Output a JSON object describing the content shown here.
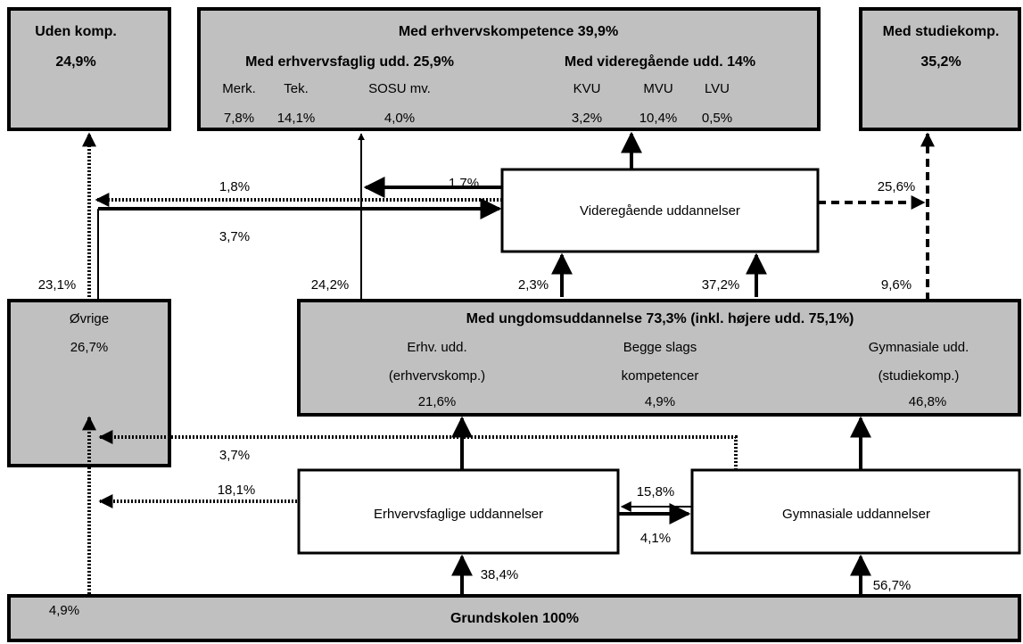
{
  "boxes": {
    "uden": {
      "title": "Uden komp.",
      "value": "24,9%"
    },
    "erhvervskompetence": {
      "title": "Med erhvervskompetence 39,9%",
      "faglig": {
        "title": "Med erhvervsfaglig udd. 25,9%",
        "items": [
          {
            "label": "Merk.",
            "value": "7,8%"
          },
          {
            "label": "Tek.",
            "value": "14,1%"
          },
          {
            "label": "SOSU mv.",
            "value": "4,0%"
          }
        ]
      },
      "videregaaende": {
        "title": "Med videregående udd. 14%",
        "items": [
          {
            "label": "KVU",
            "value": "3,2%"
          },
          {
            "label": "MVU",
            "value": "10,4%"
          },
          {
            "label": "LVU",
            "value": "0,5%"
          }
        ]
      }
    },
    "studiekomp": {
      "title": "Med studiekomp.",
      "value": "35,2%"
    },
    "videregaaende_udd": {
      "title": "Videregående uddannelser"
    },
    "oevrige": {
      "title": "Øvrige",
      "value": "26,7%"
    },
    "ungdom": {
      "title": "Med ungdomsuddannelse 73,3% (inkl. højere udd. 75,1%)",
      "columns": [
        {
          "lines": [
            "Erhv. udd.",
            "(erhvervskomp.)"
          ],
          "value": "21,6%"
        },
        {
          "lines": [
            "Begge slags",
            "kompetencer"
          ],
          "value": "4,9%"
        },
        {
          "lines": [
            "Gymnasiale udd.",
            "(studiekomp.)"
          ],
          "value": "46,8%"
        }
      ]
    },
    "erhvervsfaglige": {
      "title": "Erhvervsfaglige uddannelser"
    },
    "gymnasiale": {
      "title": "Gymnasiale uddannelser"
    },
    "grundskolen": {
      "title": "Grundskolen 100%"
    }
  },
  "flows": {
    "vid_to_uden": "1,8%",
    "vid_to_erhv": "1,7%",
    "uden_to_vid": "3,7%",
    "vid_to_stud": "25,6%",
    "oevrige_up": "23,1%",
    "ungdom_to_erhv": "24,2%",
    "ungdom_to_vid_a": "2,3%",
    "ungdom_to_vid_b": "37,2%",
    "ungdom_to_stud": "9,6%",
    "gym_to_oevrige": "3,7%",
    "erhvf_to_oevrige": "18,1%",
    "gym_to_erhvf": "15,8%",
    "erhvf_to_gym": "4,1%",
    "grund_to_oevrige": "4,9%",
    "grund_to_erhvf": "38,4%",
    "grund_to_gym": "56,7%"
  }
}
